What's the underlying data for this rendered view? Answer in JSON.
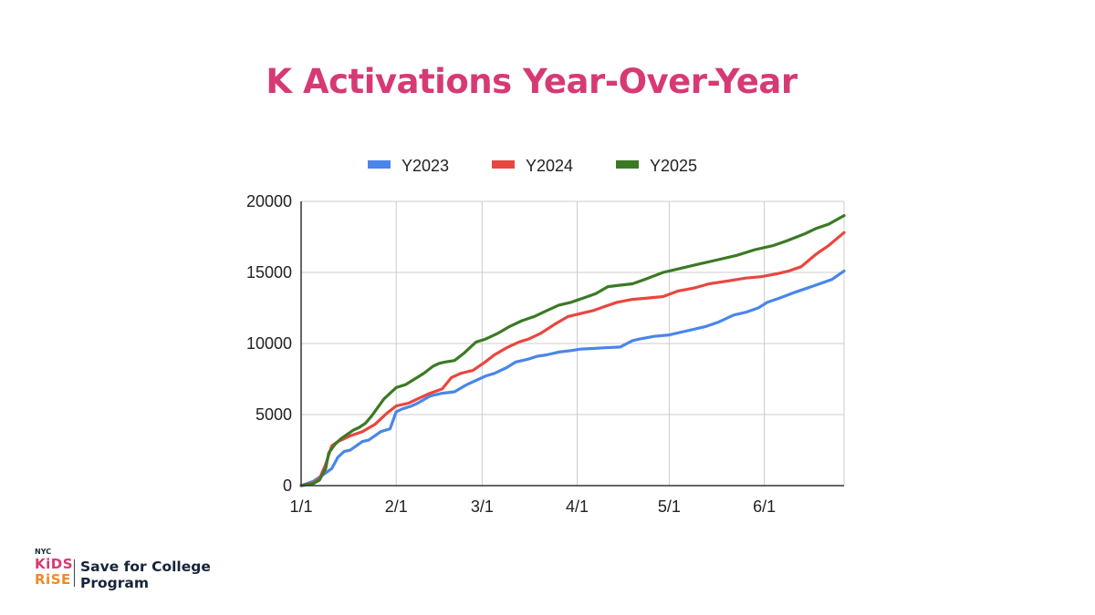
{
  "colors": {
    "title": "#d63a75",
    "Y2023": "#4a86e8",
    "Y2024": "#e8473f",
    "Y2025": "#3b7a24",
    "grid": "#cccccc",
    "axis": "#333333",
    "brand_pink": "#d63a75",
    "brand_orange": "#f08a24",
    "brand_navy": "#16243a"
  },
  "logo": {
    "city": "NYC",
    "word1": "KiDS",
    "word2": "RiSE",
    "tagline": "Save for College Program"
  },
  "chart_data": {
    "type": "line",
    "title": "K Activations Year-Over-Year",
    "xlabel": "",
    "ylabel": "",
    "x_ticks": [
      "1/1",
      "2/1",
      "3/1",
      "4/1",
      "5/1",
      "6/1"
    ],
    "x_unit": "day_of_year",
    "x_range": [
      0,
      177
    ],
    "ylim": [
      0,
      20000
    ],
    "y_ticks": [
      0,
      5000,
      10000,
      15000,
      20000
    ],
    "grid": true,
    "legend_position": "top",
    "series": [
      {
        "name": "Y2023",
        "x": [
          0,
          4,
          8,
          10,
          12,
          14,
          16,
          18,
          20,
          22,
          26,
          29,
          31,
          33,
          36,
          38,
          42,
          46,
          50,
          54,
          58,
          60,
          63,
          67,
          70,
          74,
          77,
          80,
          84,
          88,
          91,
          95,
          99,
          104,
          108,
          110,
          115,
          120,
          124,
          128,
          132,
          136,
          141,
          145,
          149,
          152,
          156,
          161,
          165,
          169,
          173,
          177
        ],
        "y": [
          0,
          300,
          900,
          1200,
          2000,
          2400,
          2500,
          2800,
          3100,
          3200,
          3800,
          4000,
          5200,
          5400,
          5600,
          5800,
          6300,
          6500,
          6600,
          7100,
          7500,
          7700,
          7900,
          8300,
          8700,
          8900,
          9100,
          9200,
          9400,
          9500,
          9600,
          9650,
          9700,
          9750,
          10200,
          10300,
          10500,
          10600,
          10800,
          11000,
          11200,
          11500,
          12000,
          12200,
          12500,
          12900,
          13200,
          13600,
          13900,
          14200,
          14500,
          15100
        ]
      },
      {
        "name": "Y2024",
        "x": [
          0,
          4,
          6,
          8,
          10,
          12,
          14,
          16,
          20,
          24,
          28,
          31,
          35,
          38,
          42,
          46,
          49,
          52,
          56,
          60,
          63,
          67,
          71,
          74,
          78,
          83,
          87,
          91,
          95,
          99,
          103,
          108,
          113,
          118,
          123,
          128,
          133,
          139,
          145,
          150,
          155,
          159,
          163,
          168,
          172,
          177
        ],
        "y": [
          0,
          200,
          500,
          1500,
          2800,
          3100,
          3300,
          3500,
          3800,
          4300,
          5100,
          5600,
          5800,
          6100,
          6500,
          6800,
          7600,
          7900,
          8100,
          8700,
          9200,
          9700,
          10100,
          10300,
          10700,
          11400,
          11900,
          12100,
          12300,
          12600,
          12900,
          13100,
          13200,
          13300,
          13700,
          13900,
          14200,
          14400,
          14600,
          14700,
          14900,
          15100,
          15400,
          16300,
          16900,
          17800
        ]
      },
      {
        "name": "Y2025",
        "x": [
          0,
          4,
          6,
          8,
          9,
          11,
          13,
          15,
          17,
          19,
          21,
          23,
          25,
          27,
          29,
          31,
          34,
          37,
          40,
          43,
          45,
          47,
          50,
          53,
          57,
          60,
          64,
          68,
          72,
          76,
          80,
          84,
          88,
          92,
          96,
          100,
          104,
          108,
          112,
          118,
          124,
          130,
          136,
          142,
          148,
          154,
          158,
          164,
          168,
          172,
          177
        ],
        "y": [
          0,
          150,
          400,
          1200,
          2300,
          2900,
          3300,
          3600,
          3900,
          4100,
          4400,
          4900,
          5500,
          6100,
          6500,
          6900,
          7100,
          7500,
          7900,
          8400,
          8600,
          8700,
          8800,
          9300,
          10100,
          10300,
          10700,
          11200,
          11600,
          11900,
          12300,
          12700,
          12900,
          13200,
          13500,
          14000,
          14100,
          14200,
          14500,
          15000,
          15300,
          15600,
          15900,
          16200,
          16600,
          16900,
          17200,
          17700,
          18100,
          18400,
          19000
        ]
      }
    ]
  }
}
